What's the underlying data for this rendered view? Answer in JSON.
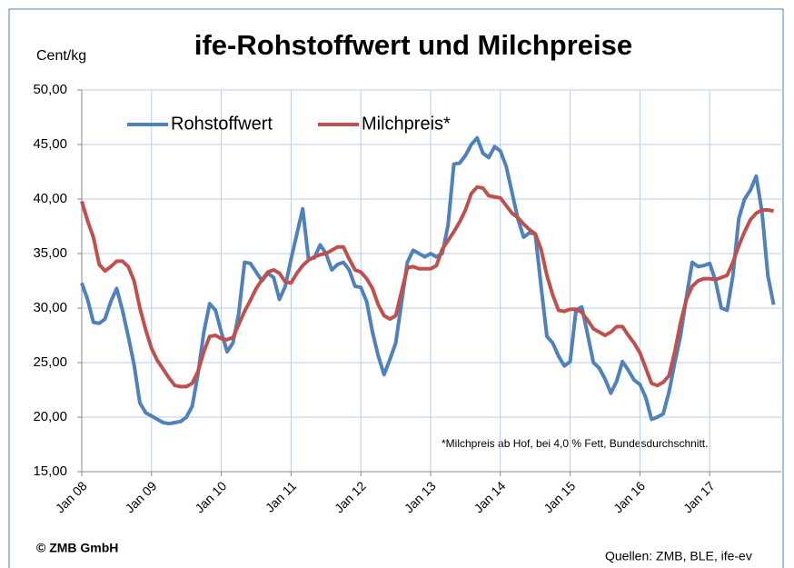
{
  "chart_data": {
    "type": "line",
    "title": "ife-Rohstoffwert und Milchpreise",
    "y_axis_label": "Cent/kg",
    "annotation": "*Milchpreis ab Hof, bei 4,0 % Fett, Bundesdurchschnitt.",
    "copyright": "© ZMB GmbH",
    "source": "Quellen: ZMB, BLE, ife-ev",
    "categories": [
      "Jan 08",
      null,
      null,
      null,
      null,
      null,
      null,
      null,
      null,
      null,
      null,
      null,
      "Jan 09",
      null,
      null,
      null,
      null,
      null,
      null,
      null,
      null,
      null,
      null,
      null,
      "Jan 10",
      null,
      null,
      null,
      null,
      null,
      null,
      null,
      null,
      null,
      null,
      null,
      "Jan 11",
      null,
      null,
      null,
      null,
      null,
      null,
      null,
      null,
      null,
      null,
      null,
      "Jan 12",
      null,
      null,
      null,
      null,
      null,
      null,
      null,
      null,
      null,
      null,
      null,
      "Jan 13",
      null,
      null,
      null,
      null,
      null,
      null,
      null,
      null,
      null,
      null,
      null,
      "Jan 14",
      null,
      null,
      null,
      null,
      null,
      null,
      null,
      null,
      null,
      null,
      null,
      "Jan 15",
      null,
      null,
      null,
      null,
      null,
      null,
      null,
      null,
      null,
      null,
      null,
      "Jan 16",
      null,
      null,
      null,
      null,
      null,
      null,
      null,
      null,
      null,
      null,
      null,
      "Jan 17",
      null,
      null,
      null,
      null,
      null,
      null,
      null,
      null,
      null,
      null,
      null
    ],
    "series": [
      {
        "name": "Rohstoffwert",
        "color": "#4f81bd",
        "values": [
          32.3,
          30.8,
          28.7,
          28.6,
          29.0,
          30.6,
          31.8,
          29.8,
          27.4,
          24.8,
          21.3,
          20.4,
          20.1,
          19.8,
          19.5,
          19.4,
          19.5,
          19.6,
          20.0,
          21.0,
          24.0,
          27.8,
          30.4,
          29.8,
          27.8,
          26.0,
          26.8,
          29.5,
          34.2,
          34.1,
          33.3,
          32.5,
          33.2,
          32.8,
          30.8,
          32.0,
          34.5,
          36.8,
          39.1,
          34.5,
          34.6,
          35.8,
          35.0,
          33.5,
          34.0,
          34.2,
          33.5,
          32.0,
          31.9,
          30.6,
          27.8,
          25.6,
          23.9,
          25.3,
          26.8,
          30.5,
          34.2,
          35.3,
          35.0,
          34.7,
          35.0,
          34.7,
          35.0,
          37.6,
          43.2,
          43.3,
          44.0,
          45.0,
          45.6,
          44.2,
          43.8,
          44.8,
          44.4,
          43.0,
          40.6,
          38.2,
          36.5,
          36.9,
          36.8,
          32.0,
          27.4,
          26.8,
          25.6,
          24.7,
          25.1,
          29.8,
          30.1,
          27.6,
          25.0,
          24.5,
          23.5,
          22.2,
          23.3,
          25.1,
          24.3,
          23.4,
          23.0,
          21.8,
          19.8,
          20.0,
          20.3,
          22.3,
          25.0,
          27.5,
          31.0,
          34.2,
          33.8,
          33.9,
          34.1,
          32.5,
          30.0,
          29.8,
          33.0,
          38.2,
          40.0,
          40.8,
          42.1,
          38.8,
          33.0,
          30.3
        ]
      },
      {
        "name": "Milchpreis*",
        "color": "#c0504d",
        "values": [
          39.8,
          38.0,
          36.5,
          34.0,
          33.4,
          33.8,
          34.3,
          34.3,
          33.8,
          32.5,
          30.0,
          28.0,
          26.3,
          25.2,
          24.4,
          23.6,
          22.9,
          22.8,
          22.8,
          23.1,
          24.2,
          26.0,
          27.4,
          27.5,
          27.2,
          27.1,
          27.3,
          28.5,
          29.7,
          30.7,
          31.8,
          32.6,
          33.3,
          33.5,
          33.2,
          32.4,
          32.3,
          33.2,
          33.9,
          34.4,
          34.7,
          34.9,
          35.0,
          35.3,
          35.6,
          35.6,
          34.5,
          33.5,
          33.3,
          32.7,
          31.8,
          30.3,
          29.3,
          29.0,
          29.3,
          31.5,
          33.7,
          33.8,
          33.6,
          33.6,
          33.6,
          33.9,
          35.4,
          36.2,
          37.0,
          37.9,
          39.0,
          40.5,
          41.1,
          41.0,
          40.3,
          40.2,
          40.1,
          39.4,
          38.7,
          38.3,
          37.7,
          37.2,
          36.8,
          35.4,
          33.0,
          31.2,
          29.8,
          29.7,
          29.9,
          29.9,
          29.6,
          28.9,
          28.1,
          27.8,
          27.5,
          27.8,
          28.3,
          28.3,
          27.5,
          26.8,
          25.9,
          24.5,
          23.1,
          22.9,
          23.2,
          23.8,
          26.0,
          28.7,
          30.8,
          32.0,
          32.5,
          32.7,
          32.7,
          32.6,
          32.8,
          33.0,
          34.2,
          35.7,
          37.0,
          38.1,
          38.7,
          39.0,
          39.0,
          38.9
        ]
      }
    ],
    "ylim": [
      15,
      50
    ],
    "yticks": [
      {
        "value": 15,
        "label": "15,00"
      },
      {
        "value": 20,
        "label": "20,00"
      },
      {
        "value": 25,
        "label": "25,00"
      },
      {
        "value": 30,
        "label": "30,00"
      },
      {
        "value": 35,
        "label": "35,00"
      },
      {
        "value": 40,
        "label": "40,00"
      },
      {
        "value": 45,
        "label": "45,00"
      },
      {
        "value": 50,
        "label": "50,00"
      }
    ],
    "grid": true,
    "legend": "top-left"
  }
}
